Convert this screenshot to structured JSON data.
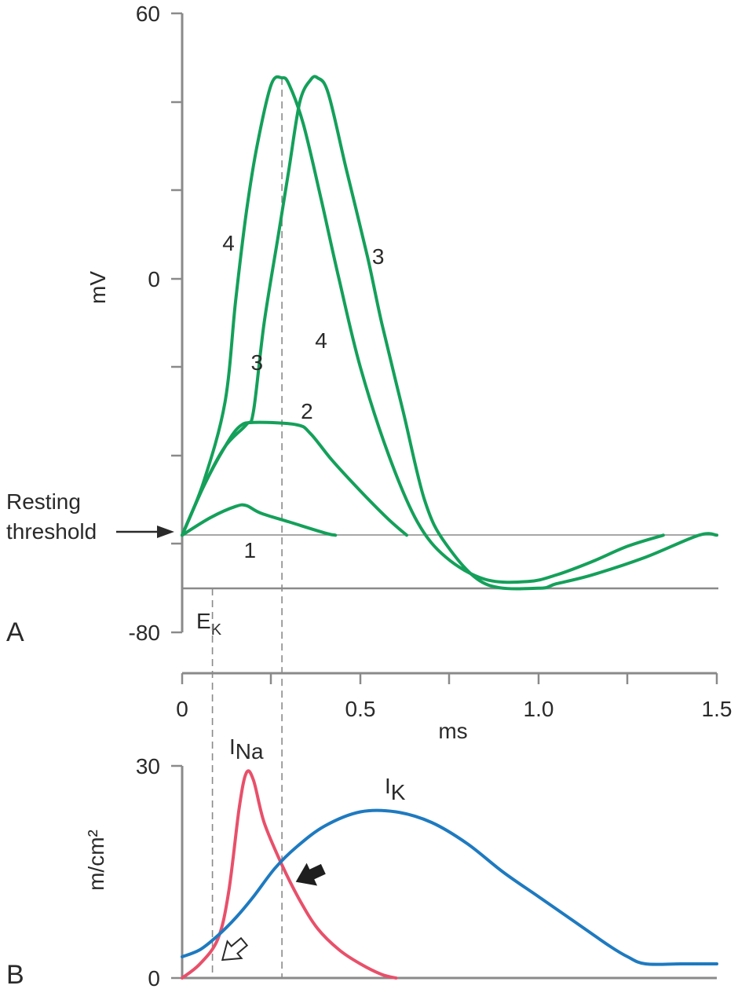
{
  "chart_data": [
    {
      "panel": "A",
      "type": "line",
      "ylabel": "mV",
      "xlabel": "ms",
      "ylim": [
        -80,
        60
      ],
      "xlim": [
        0,
        1.5
      ],
      "yticks": [
        "60",
        "0",
        "-80"
      ],
      "xticks": [
        "0",
        "0.5",
        "1.0",
        "1.5"
      ],
      "annotations": {
        "resting_threshold": "Resting\nthreshold",
        "ek_main": "E",
        "ek_sub": "K"
      },
      "threshold_mV": -32,
      "resting_mV": -58,
      "series": [
        {
          "name": "1",
          "color": "#14a05a",
          "points": [
            [
              0,
              -58
            ],
            [
              0.08,
              -54
            ],
            [
              0.15,
              -51.5
            ],
            [
              0.18,
              -51.3
            ],
            [
              0.22,
              -53
            ],
            [
              0.3,
              -55
            ],
            [
              0.4,
              -57.5
            ],
            [
              0.43,
              -58
            ]
          ]
        },
        {
          "name": "2",
          "color": "#14a05a",
          "points": [
            [
              0,
              -58
            ],
            [
              0.06,
              -47
            ],
            [
              0.12,
              -38
            ],
            [
              0.16,
              -33.5
            ],
            [
              0.2,
              -32.5
            ],
            [
              0.32,
              -33
            ],
            [
              0.36,
              -35
            ],
            [
              0.42,
              -41
            ],
            [
              0.5,
              -48
            ],
            [
              0.58,
              -54.5
            ],
            [
              0.63,
              -58
            ]
          ]
        },
        {
          "name": "3",
          "color": "#14a05a",
          "points": [
            [
              0,
              -58
            ],
            [
              0.06,
              -47
            ],
            [
              0.12,
              -38
            ],
            [
              0.18,
              -33
            ],
            [
              0.2,
              -30
            ],
            [
              0.23,
              -10
            ],
            [
              0.27,
              10
            ],
            [
              0.3,
              25
            ],
            [
              0.33,
              40
            ],
            [
              0.36,
              45
            ],
            [
              0.38,
              45.5
            ],
            [
              0.41,
              42
            ],
            [
              0.46,
              25
            ],
            [
              0.52,
              5
            ],
            [
              0.56,
              -10
            ],
            [
              0.62,
              -30
            ],
            [
              0.68,
              -50
            ],
            [
              0.74,
              -60
            ],
            [
              0.85,
              -69
            ],
            [
              1.0,
              -70
            ],
            [
              1.05,
              -69
            ],
            [
              1.15,
              -67
            ],
            [
              1.3,
              -63
            ],
            [
              1.45,
              -58
            ],
            [
              1.5,
              -58
            ]
          ]
        },
        {
          "name": "4",
          "color": "#14a05a",
          "points": [
            [
              0,
              -58
            ],
            [
              0.06,
              -46
            ],
            [
              0.12,
              -28
            ],
            [
              0.15,
              -5
            ],
            [
              0.18,
              15
            ],
            [
              0.21,
              30
            ],
            [
              0.25,
              44
            ],
            [
              0.28,
              45.5
            ],
            [
              0.3,
              44
            ],
            [
              0.34,
              35
            ],
            [
              0.39,
              18
            ],
            [
              0.44,
              0
            ],
            [
              0.5,
              -20
            ],
            [
              0.58,
              -40
            ],
            [
              0.66,
              -55
            ],
            [
              0.74,
              -63
            ],
            [
              0.85,
              -68
            ],
            [
              0.97,
              -68.5
            ],
            [
              1.05,
              -67
            ],
            [
              1.15,
              -64
            ],
            [
              1.25,
              -60.5
            ],
            [
              1.35,
              -58
            ]
          ]
        }
      ],
      "curve_labels": [
        {
          "text": "4",
          "at": [
            0.13,
            8
          ]
        },
        {
          "text": "3",
          "at": [
            0.21,
            -19
          ]
        },
        {
          "text": "4",
          "at": [
            0.39,
            -14
          ]
        },
        {
          "text": "3",
          "at": [
            0.55,
            5
          ]
        },
        {
          "text": "2",
          "at": [
            0.35,
            -30
          ]
        },
        {
          "text": "1",
          "at": [
            0.19,
            -61.5
          ]
        }
      ],
      "dashed_marker_ms": [
        0.085,
        0.28
      ]
    },
    {
      "panel": "B",
      "type": "line",
      "ylabel": "m/cm²",
      "ylim": [
        0,
        30
      ],
      "yticks": [
        "30",
        "0"
      ],
      "series": [
        {
          "name_main": "I",
          "name_sub": "Na",
          "color": "#e8506a",
          "points": [
            [
              0,
              0
            ],
            [
              0.05,
              2
            ],
            [
              0.1,
              5.5
            ],
            [
              0.13,
              12
            ],
            [
              0.16,
              24
            ],
            [
              0.18,
              29
            ],
            [
              0.2,
              28
            ],
            [
              0.23,
              22
            ],
            [
              0.28,
              16
            ],
            [
              0.33,
              11
            ],
            [
              0.38,
              7
            ],
            [
              0.44,
              4
            ],
            [
              0.5,
              2
            ],
            [
              0.56,
              0.5
            ],
            [
              0.6,
              0
            ]
          ]
        },
        {
          "name_main": "I",
          "name_sub": "K",
          "color": "#1e7ac0",
          "points": [
            [
              0,
              3
            ],
            [
              0.05,
              4
            ],
            [
              0.1,
              6
            ],
            [
              0.15,
              8.5
            ],
            [
              0.2,
              11.5
            ],
            [
              0.26,
              15.5
            ],
            [
              0.32,
              18.5
            ],
            [
              0.4,
              21.5
            ],
            [
              0.5,
              23.5
            ],
            [
              0.6,
              23.5
            ],
            [
              0.7,
              22
            ],
            [
              0.8,
              19
            ],
            [
              0.9,
              15
            ],
            [
              1.0,
              11.5
            ],
            [
              1.1,
              8
            ],
            [
              1.2,
              4.5
            ],
            [
              1.25,
              3
            ],
            [
              1.3,
              2
            ],
            [
              1.4,
              2
            ],
            [
              1.5,
              2
            ]
          ]
        }
      ],
      "arrows": [
        {
          "style": "open",
          "points_to_ms": 0.085
        },
        {
          "style": "filled",
          "points_to_ms": 0.28
        }
      ]
    }
  ],
  "panel_labels": {
    "a": "A",
    "b": "B"
  }
}
